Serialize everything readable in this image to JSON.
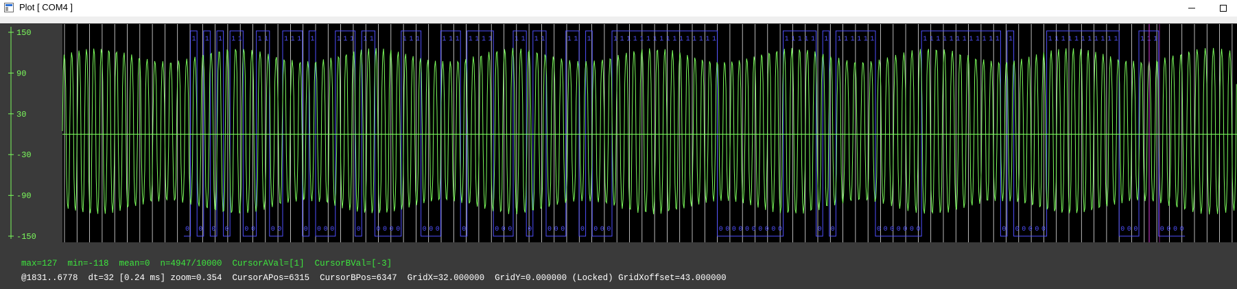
{
  "window": {
    "title": "Plot [ COM4 ]",
    "minimize_icon": "minimize-icon",
    "maximize_icon": "maximize-icon",
    "app_icon": "plot-window-icon"
  },
  "plot": {
    "background": "#000000",
    "panel_color": "#3a3a3a",
    "trace_color": "#7cfc5c",
    "digital_color": "#5050ff",
    "grid_color": "#e8e8e8",
    "cursor_color": "#d63cd6",
    "zero_line_color": "#7cfc5c",
    "y_ticks": [
      "150",
      "90",
      "30",
      "-30",
      "-90",
      "-150"
    ]
  },
  "chart_data": {
    "type": "line",
    "title": "",
    "xlabel": "",
    "ylabel": "",
    "ylim": [
      -150,
      150
    ],
    "y_ticks": [
      150,
      90,
      30,
      -30,
      -90,
      -150
    ],
    "grid": "on",
    "x_grid_spacing": 32,
    "samples_shown": [
      1831,
      6778
    ],
    "series": [
      {
        "name": "",
        "kind": "analog-square-ish oscillation",
        "min": -118,
        "max": 127
      },
      {
        "name": "",
        "kind": "digital bits",
        "labels_high": "1",
        "labels_low": "0"
      }
    ],
    "bits": "01010101100110011101000111011000011100011101111000110110001101000111111111111111100000000001111101011111100000001111111111110100000111111111110001110000000000000101110000000011100000001",
    "cursor_a_pos": 6315,
    "cursor_b_pos": 6347
  },
  "status": {
    "line1": "max=127  min=-118  mean=0  n=4947/10000  CursorAVal=[1]  CursorBVal=[-3]",
    "line2": "@1831..6778  dt=32 [0.24 ms] zoom=0.354  CursorAPos=6315  CursorBPos=6347  GridX=32.000000  GridY=0.000000 (Locked) GridXoffset=43.000000",
    "color1": "#3ee63e",
    "color2": "#ffffff"
  }
}
